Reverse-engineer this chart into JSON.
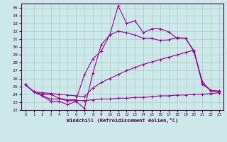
{
  "xlabel": "Windchill (Refroidissement éolien,°C)",
  "bg_color": "#cce8e8",
  "grid_color": "#aacccc",
  "line_color": "#990099",
  "ylim": [
    22,
    35.5
  ],
  "xlim": [
    -0.5,
    23.5
  ],
  "yticks": [
    22,
    23,
    24,
    25,
    26,
    27,
    28,
    29,
    30,
    31,
    32,
    33,
    34,
    35
  ],
  "xticks": [
    0,
    1,
    2,
    3,
    4,
    5,
    6,
    7,
    8,
    9,
    10,
    11,
    12,
    13,
    14,
    15,
    16,
    17,
    18,
    19,
    20,
    21,
    22,
    23
  ],
  "line1": [
    25.2,
    24.3,
    23.8,
    23.1,
    23.1,
    22.7,
    23.1,
    22.2,
    26.7,
    30.3,
    31.5,
    35.2,
    33.0,
    33.3,
    31.8,
    32.3,
    32.3,
    31.9,
    31.1,
    31.1,
    29.4,
    25.6,
    24.4,
    24.4
  ],
  "line2": [
    25.2,
    24.3,
    24.0,
    24.0,
    23.5,
    23.3,
    23.3,
    26.5,
    28.5,
    29.5,
    31.5,
    32.0,
    31.8,
    31.5,
    31.1,
    31.1,
    30.8,
    30.9,
    31.2,
    31.1,
    29.5,
    25.3,
    24.5,
    24.4
  ],
  "line3": [
    25.2,
    24.3,
    24.2,
    24.1,
    24.0,
    23.9,
    23.8,
    23.7,
    24.8,
    25.5,
    26.0,
    26.5,
    27.0,
    27.4,
    27.8,
    28.1,
    28.4,
    28.7,
    29.0,
    29.3,
    29.6,
    25.3,
    24.5,
    24.3
  ],
  "line4": [
    25.2,
    24.3,
    23.8,
    23.4,
    23.4,
    23.2,
    23.2,
    23.2,
    23.3,
    23.4,
    23.4,
    23.5,
    23.5,
    23.6,
    23.6,
    23.7,
    23.8,
    23.8,
    23.9,
    23.9,
    24.0,
    24.0,
    24.1,
    24.2
  ]
}
